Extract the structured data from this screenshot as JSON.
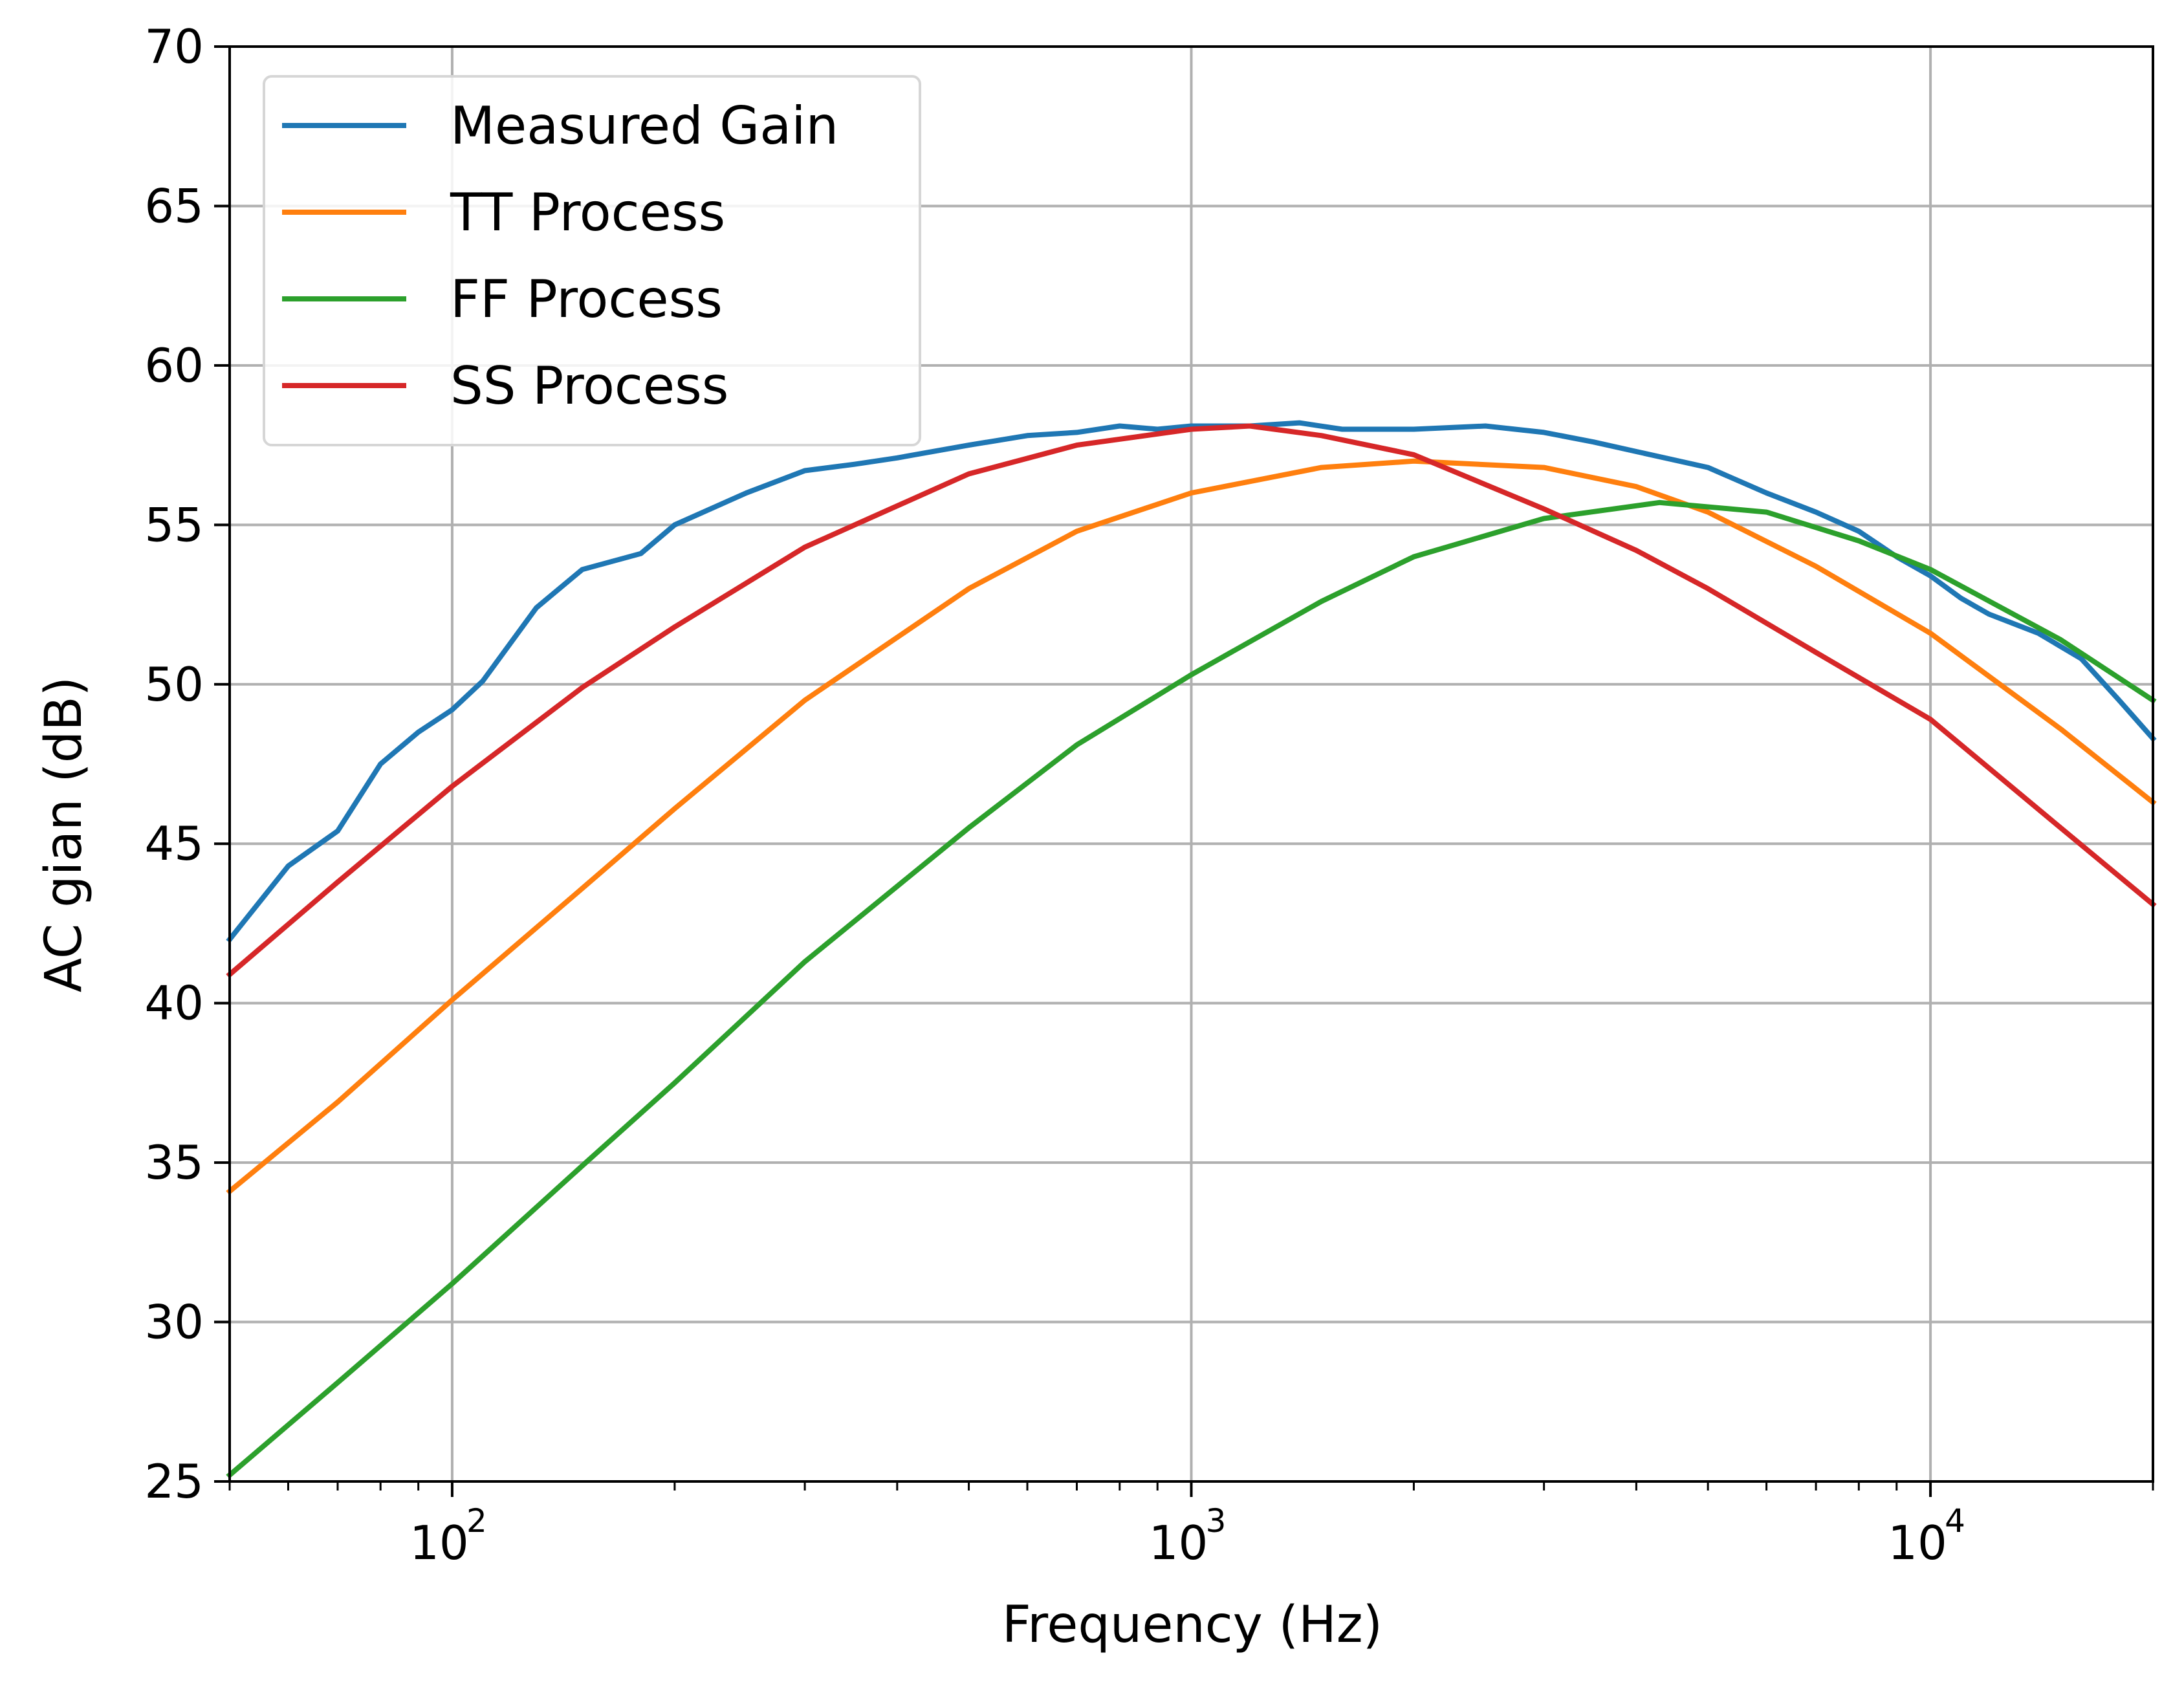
{
  "chart_data": {
    "type": "line",
    "title": "",
    "xlabel": "Frequency (Hz)",
    "ylabel": "AC gian (dB)",
    "xscale": "log",
    "xlim": [
      50,
      20000
    ],
    "ylim": [
      25,
      70
    ],
    "xticks": [
      {
        "value": 100,
        "base": "10",
        "exp": "2"
      },
      {
        "value": 1000,
        "base": "10",
        "exp": "3"
      },
      {
        "value": 10000,
        "base": "10",
        "exp": "4"
      }
    ],
    "yticks": [
      25,
      30,
      35,
      40,
      45,
      50,
      55,
      60,
      65,
      70
    ],
    "grid": true,
    "legend_position": "top-left",
    "series": [
      {
        "name": "Measured Gain",
        "color": "#1f77b4",
        "x": [
          50,
          60,
          70,
          80,
          90,
          100,
          110,
          130,
          150,
          180,
          200,
          250,
          300,
          350,
          400,
          500,
          600,
          700,
          800,
          900,
          1000,
          1200,
          1400,
          1600,
          2000,
          2500,
          3000,
          3500,
          4000,
          5000,
          6000,
          7000,
          8000,
          9000,
          10000,
          11000,
          12000,
          14000,
          16000,
          18000,
          20000
        ],
        "y": [
          42.0,
          44.3,
          45.4,
          47.5,
          48.5,
          49.2,
          50.1,
          52.4,
          53.6,
          54.1,
          55.0,
          56.0,
          56.7,
          56.9,
          57.1,
          57.5,
          57.8,
          57.9,
          58.1,
          58.0,
          58.1,
          58.1,
          58.2,
          58.0,
          58.0,
          58.1,
          57.9,
          57.6,
          57.3,
          56.8,
          56.0,
          55.4,
          54.8,
          54.0,
          53.4,
          52.7,
          52.2,
          51.6,
          50.8,
          49.5,
          48.3
        ]
      },
      {
        "name": "TT Process",
        "color": "#ff7f0e",
        "peak_freq": 2000,
        "peak_gain": 57.0,
        "x": [
          50,
          70,
          100,
          150,
          200,
          300,
          500,
          700,
          1000,
          1500,
          2000,
          3000,
          4000,
          5000,
          7000,
          10000,
          15000,
          20000
        ],
        "y": [
          34.1,
          36.9,
          40.1,
          43.6,
          46.1,
          49.5,
          53.0,
          54.8,
          56.0,
          56.8,
          57.0,
          56.8,
          56.2,
          55.4,
          53.7,
          51.6,
          48.6,
          46.3
        ]
      },
      {
        "name": "FF Process",
        "color": "#2ca02c",
        "peak_freq": 4300,
        "peak_gain": 55.7,
        "x": [
          50,
          70,
          100,
          150,
          200,
          300,
          500,
          700,
          1000,
          1500,
          2000,
          3000,
          4300,
          6000,
          8000,
          10000,
          15000,
          20000
        ],
        "y": [
          25.2,
          28.1,
          31.2,
          34.9,
          37.5,
          41.3,
          45.5,
          48.1,
          50.3,
          52.6,
          54.0,
          55.2,
          55.7,
          55.4,
          54.5,
          53.6,
          51.4,
          49.5
        ]
      },
      {
        "name": "SS Process",
        "color": "#d62728",
        "peak_freq": 1200,
        "peak_gain": 58.1,
        "x": [
          50,
          70,
          100,
          150,
          200,
          300,
          500,
          700,
          1000,
          1200,
          1500,
          2000,
          3000,
          4000,
          5000,
          7000,
          10000,
          15000,
          20000
        ],
        "y": [
          40.9,
          43.8,
          46.8,
          49.9,
          51.8,
          54.3,
          56.6,
          57.5,
          58.0,
          58.1,
          57.8,
          57.2,
          55.5,
          54.2,
          53.0,
          51.0,
          48.9,
          45.5,
          43.1
        ]
      }
    ]
  }
}
